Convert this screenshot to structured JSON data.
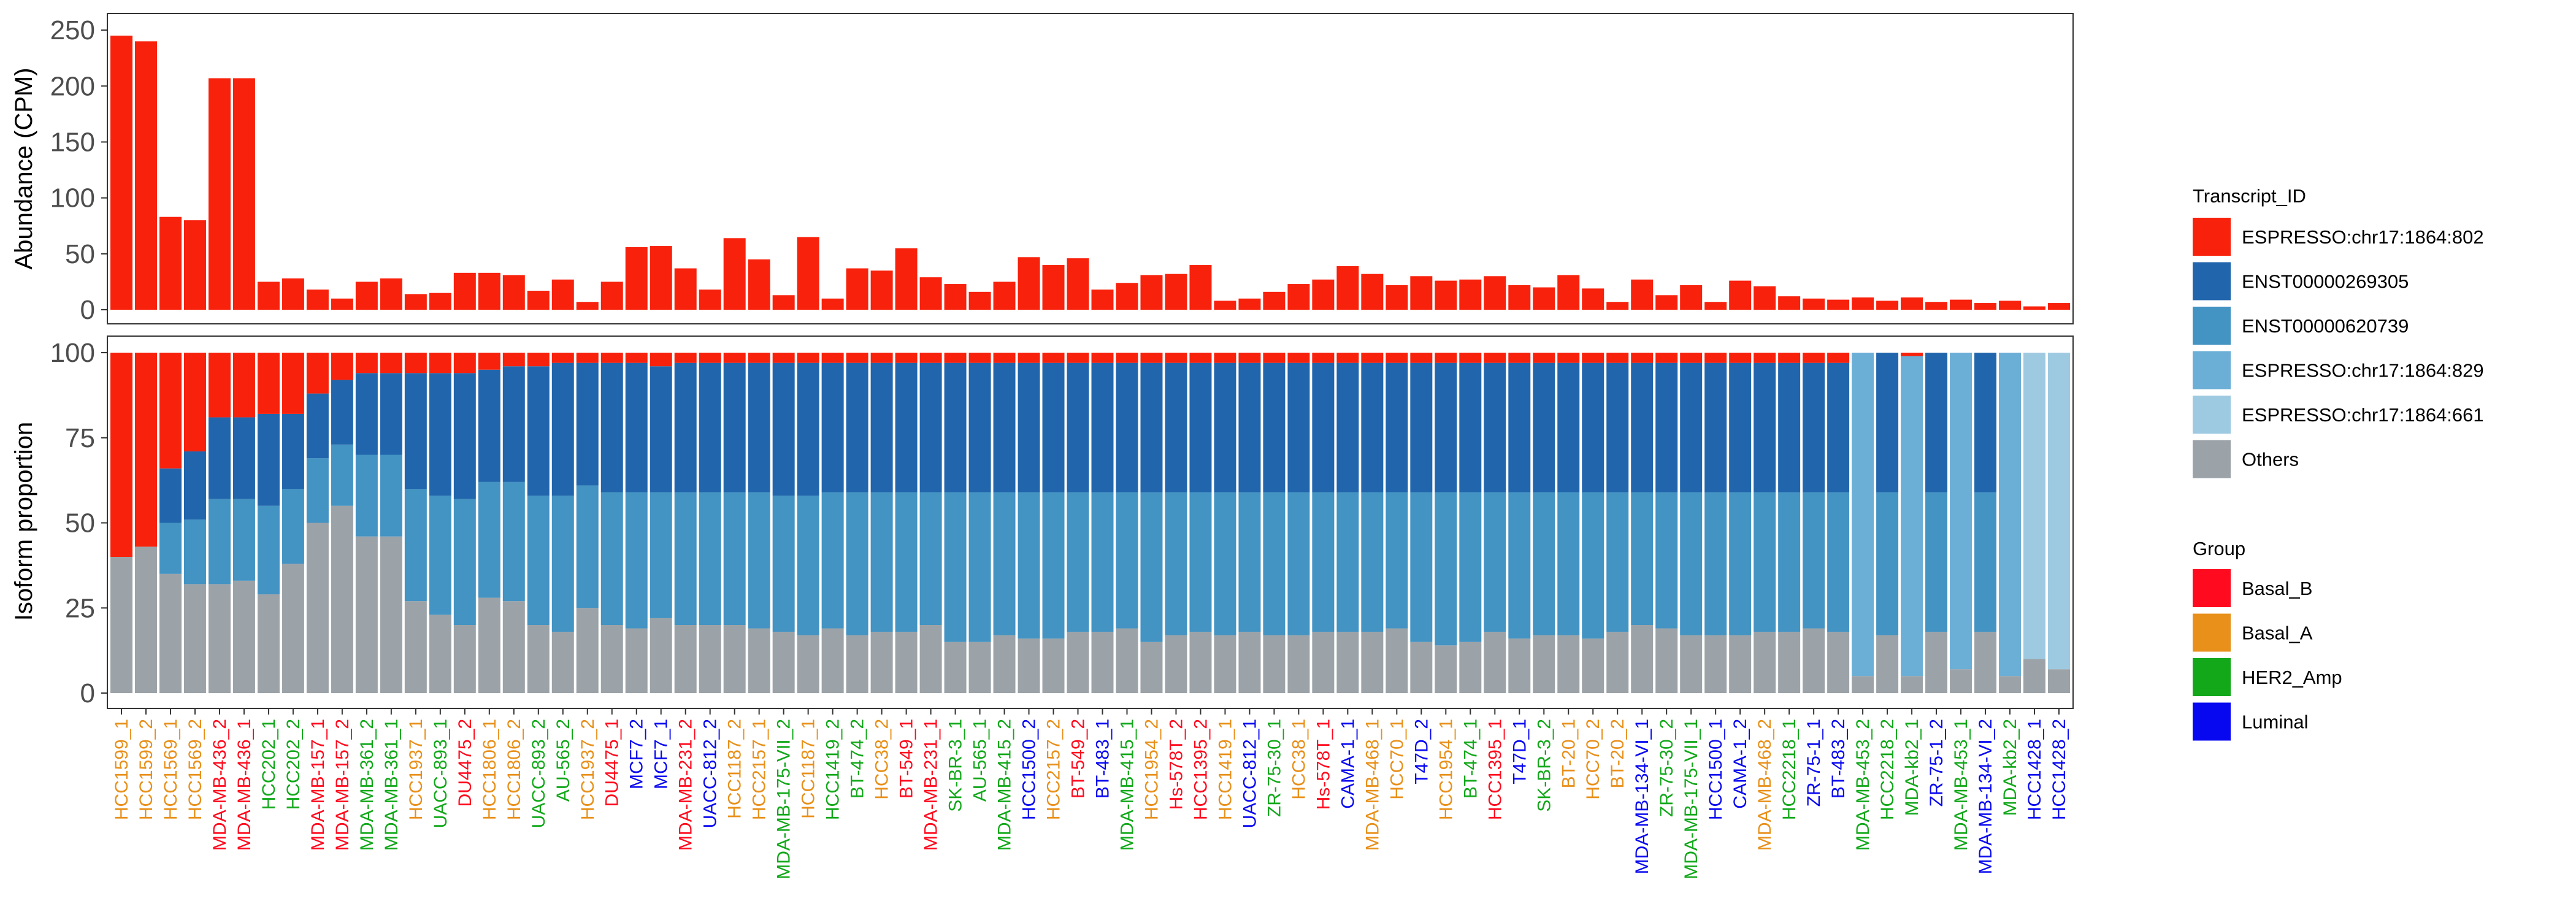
{
  "chart_data": [
    {
      "type": "bar",
      "ylabel": "Abundance (CPM)",
      "ylim": [
        0,
        255
      ],
      "yticks": [
        0,
        50,
        100,
        150,
        200,
        250
      ],
      "bar_color": "#f8210c",
      "categories": [
        "HCC1599_1",
        "HCC1599_2",
        "HCC1569_1",
        "HCC1569_2",
        "MDA-MB-436_2",
        "MDA-MB-436_1",
        "HCC202_1",
        "HCC202_2",
        "MDA-MB-157_1",
        "MDA-MB-157_2",
        "MDA-MB-361_2",
        "MDA-MB-361_1",
        "HCC1937_1",
        "UACC-893_1",
        "DU4475_2",
        "HCC1806_1",
        "HCC1806_2",
        "UACC-893_2",
        "AU-565_2",
        "HCC1937_2",
        "DU4475_1",
        "MCF7_2",
        "MCF7_1",
        "MDA-MB-231_2",
        "UACC-812_2",
        "HCC1187_2",
        "HCC2157_1",
        "MDA-MB-175-VII_2",
        "HCC1187_1",
        "HCC1419_2",
        "BT-474_2",
        "HCC38_2",
        "BT-549_1",
        "MDA-MB-231_1",
        "SK-BR-3_1",
        "AU-565_1",
        "MDA-MB-415_2",
        "HCC1500_2",
        "HCC2157_2",
        "BT-549_2",
        "BT-483_1",
        "MDA-MB-415_1",
        "HCC1954_2",
        "Hs-578T_2",
        "HCC1395_2",
        "HCC1419_1",
        "UACC-812_1",
        "ZR-75-30_1",
        "HCC38_1",
        "Hs-578T_1",
        "CAMA-1_1",
        "MDA-MB-468_1",
        "HCC70_1",
        "T47D_2",
        "HCC1954_1",
        "BT-474_1",
        "HCC1395_1",
        "T47D_1",
        "SK-BR-3_2",
        "BT-20_1",
        "HCC70_2",
        "BT-20_2",
        "MDA-MB-134-VI_1",
        "ZR-75-30_2",
        "MDA-MB-175-VII_1",
        "HCC1500_1",
        "CAMA-1_2",
        "MDA-MB-468_2",
        "HCC2218_1",
        "ZR-75-1_1",
        "BT-483_2",
        "MDA-MB-453_2",
        "HCC2218_2",
        "MDA-kb2_1",
        "ZR-75-1_2",
        "MDA-MB-453_1",
        "MDA-MB-134-VI_2",
        "MDA-kb2_2",
        "HCC1428_1",
        "HCC1428_2"
      ],
      "values": [
        245,
        240,
        83,
        80,
        207,
        207,
        25,
        28,
        18,
        10,
        25,
        28,
        14,
        15,
        33,
        33,
        31,
        17,
        27,
        7,
        25,
        56,
        57,
        37,
        18,
        64,
        45,
        13,
        65,
        10,
        37,
        35,
        55,
        29,
        23,
        16,
        25,
        47,
        40,
        46,
        18,
        24,
        31,
        32,
        40,
        8,
        10,
        16,
        23,
        27,
        39,
        32,
        22,
        30,
        26,
        27,
        30,
        22,
        20,
        31,
        19,
        7,
        27,
        13,
        22,
        7,
        26,
        21,
        12,
        10,
        9,
        11,
        8,
        11,
        7,
        9,
        6,
        8,
        3,
        6
      ]
    },
    {
      "type": "bar",
      "stacked": true,
      "ylabel": "Isoform proportion",
      "ylim": [
        0,
        100
      ],
      "yticks": [
        0,
        25,
        50,
        75,
        100
      ],
      "stack_order": [
        "Others",
        "ESPRESSO:chr17:1864:661",
        "ESPRESSO:chr17:1864:829",
        "ENST00000620739",
        "ENST00000269305",
        "ESPRESSO:chr17:1864:802"
      ],
      "series_colors": {
        "ESPRESSO:chr17:1864:802": "#f8210c",
        "ENST00000269305": "#2166ac",
        "ENST00000620739": "#4393c3",
        "ESPRESSO:chr17:1864:829": "#6baed6",
        "ESPRESSO:chr17:1864:661": "#9ecae1",
        "Others": "#9ca3a8"
      },
      "categories_ref": "same as abundance panel",
      "series": [
        {
          "name": "Others",
          "values": [
            40,
            43,
            35,
            32,
            32,
            33,
            29,
            38,
            50,
            55,
            46,
            46,
            27,
            23,
            20,
            28,
            27,
            20,
            18,
            25,
            20,
            19,
            22,
            20,
            20,
            20,
            19,
            18,
            17,
            19,
            17,
            18,
            18,
            20,
            15,
            15,
            17,
            16,
            16,
            18,
            18,
            19,
            15,
            17,
            18,
            17,
            18,
            17,
            17,
            18,
            18,
            18,
            19,
            15,
            14,
            15,
            18,
            16,
            17,
            17,
            16,
            18,
            20,
            19,
            17,
            17,
            17,
            18,
            18,
            19,
            18,
            18,
            17,
            19,
            17,
            18,
            19,
            18,
            19,
            18
          ]
        },
        {
          "name": "ESPRESSO:chr17:1864:661",
          "values": [
            0,
            0,
            0,
            0,
            0,
            0,
            0,
            0,
            0,
            0,
            0,
            0,
            0,
            0,
            0,
            0,
            0,
            0,
            0,
            0,
            0,
            0,
            0,
            0,
            0,
            0,
            0,
            0,
            0,
            0,
            0,
            0,
            0,
            0,
            0,
            0,
            0,
            0,
            0,
            0,
            0,
            0,
            0,
            0,
            0,
            0,
            0,
            0,
            0,
            0,
            0,
            0,
            0,
            0,
            0,
            0,
            0,
            0,
            0,
            0,
            0,
            0,
            0,
            0,
            0,
            0,
            0,
            0,
            0,
            0,
            0,
            0,
            0,
            0,
            0,
            0,
            0,
            0,
            0,
            0
          ]
        },
        {
          "name": "ESPRESSO:chr17:1864:829",
          "values": [
            0,
            0,
            0,
            0,
            0,
            0,
            0,
            0,
            0,
            0,
            0,
            0,
            0,
            0,
            0,
            0,
            0,
            0,
            0,
            0,
            0,
            0,
            0,
            0,
            0,
            0,
            0,
            0,
            0,
            0,
            0,
            0,
            0,
            0,
            0,
            0,
            0,
            0,
            0,
            0,
            0,
            0,
            0,
            0,
            0,
            0,
            0,
            0,
            0,
            0,
            0,
            0,
            0,
            0,
            0,
            0,
            0,
            0,
            0,
            0,
            0,
            0,
            0,
            0,
            0,
            0,
            0,
            0,
            0,
            0,
            0,
            0,
            0,
            0,
            0,
            0,
            0,
            0,
            0,
            0
          ]
        },
        {
          "name": "ENST00000620739",
          "values": [
            0,
            0,
            15,
            19,
            25,
            24,
            26,
            22,
            19,
            18,
            24,
            24,
            33,
            35,
            37,
            34,
            35,
            38,
            40,
            36,
            39,
            40,
            37,
            39,
            39,
            39,
            40,
            40,
            41,
            40,
            42,
            41,
            41,
            39,
            44,
            44,
            42,
            43,
            43,
            41,
            41,
            40,
            44,
            42,
            41,
            42,
            41,
            42,
            42,
            41,
            41,
            41,
            40,
            44,
            45,
            44,
            41,
            43,
            42,
            42,
            43,
            41,
            39,
            40,
            42,
            42,
            42,
            41,
            41,
            40,
            41,
            41,
            42,
            40,
            42,
            41,
            40,
            41,
            40,
            41
          ]
        },
        {
          "name": "ENST00000269305",
          "values": [
            0,
            0,
            16,
            20,
            24,
            24,
            27,
            22,
            19,
            19,
            24,
            24,
            34,
            36,
            37,
            33,
            34,
            38,
            39,
            36,
            38,
            38,
            37,
            38,
            38,
            38,
            38,
            39,
            39,
            38,
            38,
            38,
            38,
            38,
            38,
            38,
            38,
            38,
            38,
            38,
            38,
            38,
            38,
            38,
            38,
            38,
            38,
            38,
            38,
            38,
            38,
            38,
            38,
            38,
            38,
            38,
            38,
            38,
            38,
            38,
            38,
            38,
            38,
            38,
            38,
            38,
            38,
            38,
            38,
            38,
            38,
            38,
            38,
            38,
            38,
            38,
            38,
            38,
            38,
            38
          ]
        },
        {
          "name": "ESPRESSO:chr17:1864:802",
          "values": [
            60,
            57,
            34,
            29,
            19,
            19,
            18,
            18,
            12,
            8,
            6,
            6,
            6,
            6,
            6,
            5,
            4,
            4,
            3,
            3,
            3,
            3,
            4,
            3,
            3,
            3,
            3,
            3,
            3,
            3,
            3,
            3,
            3,
            3,
            3,
            3,
            3,
            3,
            3,
            3,
            3,
            3,
            3,
            3,
            3,
            3,
            3,
            3,
            3,
            3,
            3,
            3,
            3,
            3,
            3,
            3,
            3,
            3,
            3,
            3,
            3,
            3,
            3,
            3,
            3,
            3,
            3,
            3,
            3,
            3,
            3,
            3,
            3,
            3,
            3,
            3,
            3,
            3,
            3,
            3
          ]
        }
      ],
      "overrides": {
        "71": {
          "Others": 5,
          "ESPRESSO:chr17:1864:829": 95,
          "ENST00000620739": 0,
          "ENST00000269305": 0,
          "ESPRESSO:chr17:1864:802": 0
        },
        "72": {
          "Others": 17,
          "ENST00000620739": 42,
          "ENST00000269305": 41,
          "ESPRESSO:chr17:1864:802": 0
        },
        "73": {
          "Others": 5,
          "ESPRESSO:chr17:1864:829": 94,
          "ENST00000620739": 0,
          "ENST00000269305": 0,
          "ESPRESSO:chr17:1864:802": 1
        },
        "74": {
          "Others": 18,
          "ENST00000620739": 41,
          "ENST00000269305": 41,
          "ESPRESSO:chr17:1864:802": 0
        },
        "75": {
          "Others": 7,
          "ESPRESSO:chr17:1864:829": 93,
          "ENST00000620739": 0,
          "ENST00000269305": 0,
          "ESPRESSO:chr17:1864:802": 0
        },
        "76": {
          "Others": 18,
          "ENST00000620739": 41,
          "ENST00000269305": 41,
          "ESPRESSO:chr17:1864:802": 0
        },
        "77": {
          "Others": 5,
          "ESPRESSO:chr17:1864:829": 95,
          "ENST00000620739": 0,
          "ENST00000269305": 0,
          "ESPRESSO:chr17:1864:802": 0
        },
        "78": {
          "Others": 10,
          "ESPRESSO:chr17:1864:661": 90,
          "ENST00000620739": 0,
          "ENST00000269305": 0,
          "ESPRESSO:chr17:1864:802": 0
        },
        "79": {
          "Others": 7,
          "ESPRESSO:chr17:1864:661": 93,
          "ENST00000620739": 0,
          "ENST00000269305": 0,
          "ESPRESSO:chr17:1864:802": 0
        }
      }
    }
  ],
  "legend_transcript": {
    "title": "Transcript_ID",
    "entries": [
      {
        "label": "ESPRESSO:chr17:1864:802",
        "color": "#f8210c"
      },
      {
        "label": "ENST00000269305",
        "color": "#2166ac"
      },
      {
        "label": "ENST00000620739",
        "color": "#4393c3"
      },
      {
        "label": "ESPRESSO:chr17:1864:829",
        "color": "#6baed6"
      },
      {
        "label": "ESPRESSO:chr17:1864:661",
        "color": "#9ecae1"
      },
      {
        "label": "Others",
        "color": "#9ca3a8"
      }
    ]
  },
  "legend_group": {
    "title": "Group",
    "entries": [
      {
        "label": "Basal_B",
        "color": "#ff0a1e"
      },
      {
        "label": "Basal_A",
        "color": "#e8901a"
      },
      {
        "label": "HER2_Amp",
        "color": "#12a81a"
      },
      {
        "label": "Luminal",
        "color": "#0808f0"
      }
    ]
  },
  "sample_groups": [
    "Basal_A",
    "Basal_A",
    "Basal_A",
    "Basal_A",
    "Basal_B",
    "Basal_B",
    "HER2_Amp",
    "HER2_Amp",
    "Basal_B",
    "Basal_B",
    "HER2_Amp",
    "HER2_Amp",
    "Basal_A",
    "HER2_Amp",
    "Basal_B",
    "Basal_A",
    "Basal_A",
    "HER2_Amp",
    "HER2_Amp",
    "Basal_A",
    "Basal_B",
    "Luminal",
    "Luminal",
    "Basal_B",
    "Luminal",
    "Basal_A",
    "Basal_A",
    "HER2_Amp",
    "Basal_A",
    "HER2_Amp",
    "HER2_Amp",
    "Basal_A",
    "Basal_B",
    "Basal_B",
    "HER2_Amp",
    "HER2_Amp",
    "HER2_Amp",
    "Luminal",
    "Basal_A",
    "Basal_B",
    "Luminal",
    "HER2_Amp",
    "Basal_A",
    "Basal_B",
    "Basal_B",
    "Basal_A",
    "Luminal",
    "HER2_Amp",
    "Basal_A",
    "Basal_B",
    "Luminal",
    "Basal_A",
    "Basal_A",
    "Luminal",
    "Basal_A",
    "HER2_Amp",
    "Basal_B",
    "Luminal",
    "HER2_Amp",
    "Basal_A",
    "Basal_A",
    "Basal_A",
    "Luminal",
    "HER2_Amp",
    "HER2_Amp",
    "Luminal",
    "Luminal",
    "Basal_A",
    "HER2_Amp",
    "Luminal",
    "Luminal",
    "HER2_Amp",
    "HER2_Amp",
    "HER2_Amp",
    "Luminal",
    "HER2_Amp",
    "Luminal",
    "HER2_Amp",
    "Luminal",
    "Luminal"
  ]
}
